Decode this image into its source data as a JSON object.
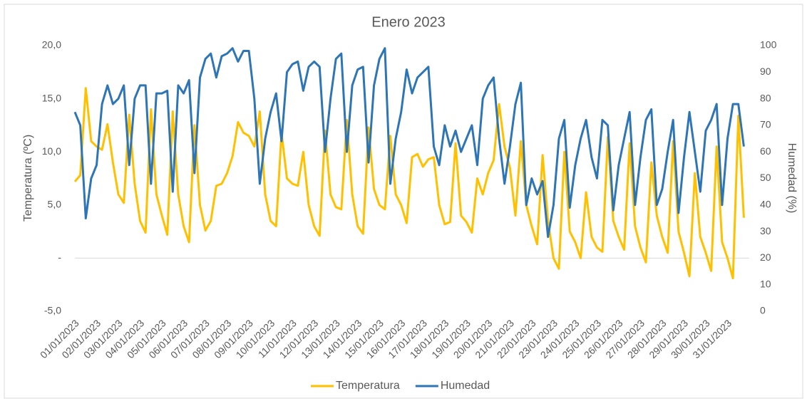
{
  "chart_data": {
    "type": "line",
    "title": "Enero 2023",
    "y_label": "Temperatura (ºC)",
    "y2_label": "Humedad (%)",
    "categories": [
      "01/01/2023",
      null,
      null,
      null,
      "02/01/2023",
      null,
      null,
      null,
      "03/01/2023",
      null,
      null,
      null,
      "04/01/2023",
      null,
      null,
      null,
      "05/01/2023",
      null,
      null,
      null,
      "06/01/2023",
      null,
      null,
      null,
      "07/01/2023",
      null,
      null,
      null,
      "08/01/2023",
      null,
      null,
      null,
      "09/01/2023",
      null,
      null,
      null,
      "10/01/2023",
      null,
      null,
      null,
      "11/01/2023",
      null,
      null,
      null,
      "12/01/2023",
      null,
      null,
      null,
      "13/01/2023",
      null,
      null,
      null,
      "14/01/2023",
      null,
      null,
      null,
      "15/01/2023",
      null,
      null,
      null,
      "16/01/2023",
      null,
      null,
      null,
      "17/01/2023",
      null,
      null,
      null,
      "18/01/2023",
      null,
      null,
      null,
      "19/01/2023",
      null,
      null,
      null,
      "20/01/2023",
      null,
      null,
      null,
      "21/01/2023",
      null,
      null,
      null,
      "22/01/2023",
      null,
      null,
      null,
      "23/01/2023",
      null,
      null,
      null,
      "24/01/2023",
      null,
      null,
      null,
      "25/01/2023",
      null,
      null,
      null,
      "26/01/2023",
      null,
      null,
      null,
      "27/01/2023",
      null,
      null,
      null,
      "28/01/2023",
      null,
      null,
      null,
      "29/01/2023",
      null,
      null,
      null,
      "30/01/2023",
      null,
      null,
      null,
      "31/01/2023",
      null,
      null,
      null
    ],
    "series": [
      {
        "name": "Temperatura",
        "color": "#ffc000",
        "values": [
          7.2,
          7.8,
          16.0,
          11.0,
          10.5,
          10.2,
          12.6,
          9.0,
          6.0,
          5.2,
          13.5,
          7.0,
          3.5,
          2.4,
          14.0,
          6.0,
          4.0,
          2.2,
          13.8,
          6.0,
          3.0,
          1.5,
          12.5,
          5.0,
          2.6,
          3.5,
          6.8,
          7.0,
          8.0,
          9.6,
          12.8,
          11.8,
          11.5,
          10.5,
          13.8,
          6.0,
          3.5,
          3.0,
          11.8,
          7.5,
          7.0,
          6.8,
          10.0,
          5.0,
          3.0,
          2.1,
          12.0,
          6.0,
          4.8,
          4.6,
          13.0,
          6.0,
          3.0,
          2.3,
          12.3,
          6.5,
          5.0,
          4.6,
          11.5,
          6.0,
          5.0,
          3.3,
          9.5,
          9.8,
          8.6,
          9.3,
          9.5,
          5.0,
          3.2,
          3.4,
          10.8,
          4.0,
          3.4,
          2.4,
          7.5,
          6.0,
          8.0,
          9.2,
          14.5,
          10.5,
          8.5,
          4.0,
          11.0,
          5.0,
          3.0,
          1.3,
          9.7,
          3.5,
          0.0,
          -1.0,
          10.0,
          2.5,
          1.5,
          0.0,
          6.2,
          2.0,
          1.0,
          0.6,
          11.4,
          3.5,
          2.0,
          0.8,
          10.8,
          3.0,
          1.0,
          -0.4,
          9.0,
          4.0,
          2.0,
          0.5,
          11.0,
          2.5,
          0.5,
          -1.7,
          8.0,
          2.0,
          0.5,
          -1.2,
          10.5,
          1.5,
          0.0,
          -1.9,
          13.4,
          3.8
        ]
      },
      {
        "name": "Humedad",
        "color": "#2e75b6",
        "axis": "y2",
        "values": [
          75,
          70,
          35,
          50,
          55,
          78,
          85,
          78,
          80,
          85,
          55,
          80,
          85,
          85,
          48,
          82,
          82,
          83,
          45,
          85,
          82,
          87,
          52,
          88,
          95,
          97,
          88,
          96,
          97,
          99,
          94,
          98,
          98,
          80,
          48,
          65,
          75,
          82,
          64,
          90,
          93,
          94,
          83,
          92,
          94,
          92,
          60,
          80,
          95,
          97,
          60,
          85,
          91,
          92,
          56,
          85,
          95,
          99,
          48,
          65,
          75,
          91,
          82,
          88,
          90,
          92,
          62,
          55,
          70,
          62,
          68,
          60,
          65,
          70,
          55,
          80,
          85,
          88,
          65,
          48,
          62,
          78,
          86,
          40,
          50,
          44,
          49,
          28,
          40,
          65,
          72,
          39,
          55,
          65,
          72,
          58,
          50,
          72,
          70,
          38,
          55,
          65,
          75,
          40,
          58,
          72,
          76,
          40,
          46,
          60,
          72,
          37,
          58,
          75,
          60,
          45,
          68,
          72,
          78,
          40,
          65,
          78,
          78,
          62
        ]
      }
    ],
    "ylim": [
      -5,
      20
    ],
    "yticks": [
      {
        "value": -5,
        "label": "-5,0"
      },
      {
        "value": 0,
        "label": "-"
      },
      {
        "value": 5,
        "label": "5,0"
      },
      {
        "value": 10,
        "label": "10,0"
      },
      {
        "value": 15,
        "label": "15,0"
      },
      {
        "value": 20,
        "label": "20,0"
      }
    ],
    "y2lim": [
      0,
      100
    ],
    "y2ticks": [
      0,
      10,
      20,
      30,
      40,
      50,
      60,
      70,
      80,
      90,
      100
    ],
    "grid": false,
    "legend": "bottom"
  }
}
